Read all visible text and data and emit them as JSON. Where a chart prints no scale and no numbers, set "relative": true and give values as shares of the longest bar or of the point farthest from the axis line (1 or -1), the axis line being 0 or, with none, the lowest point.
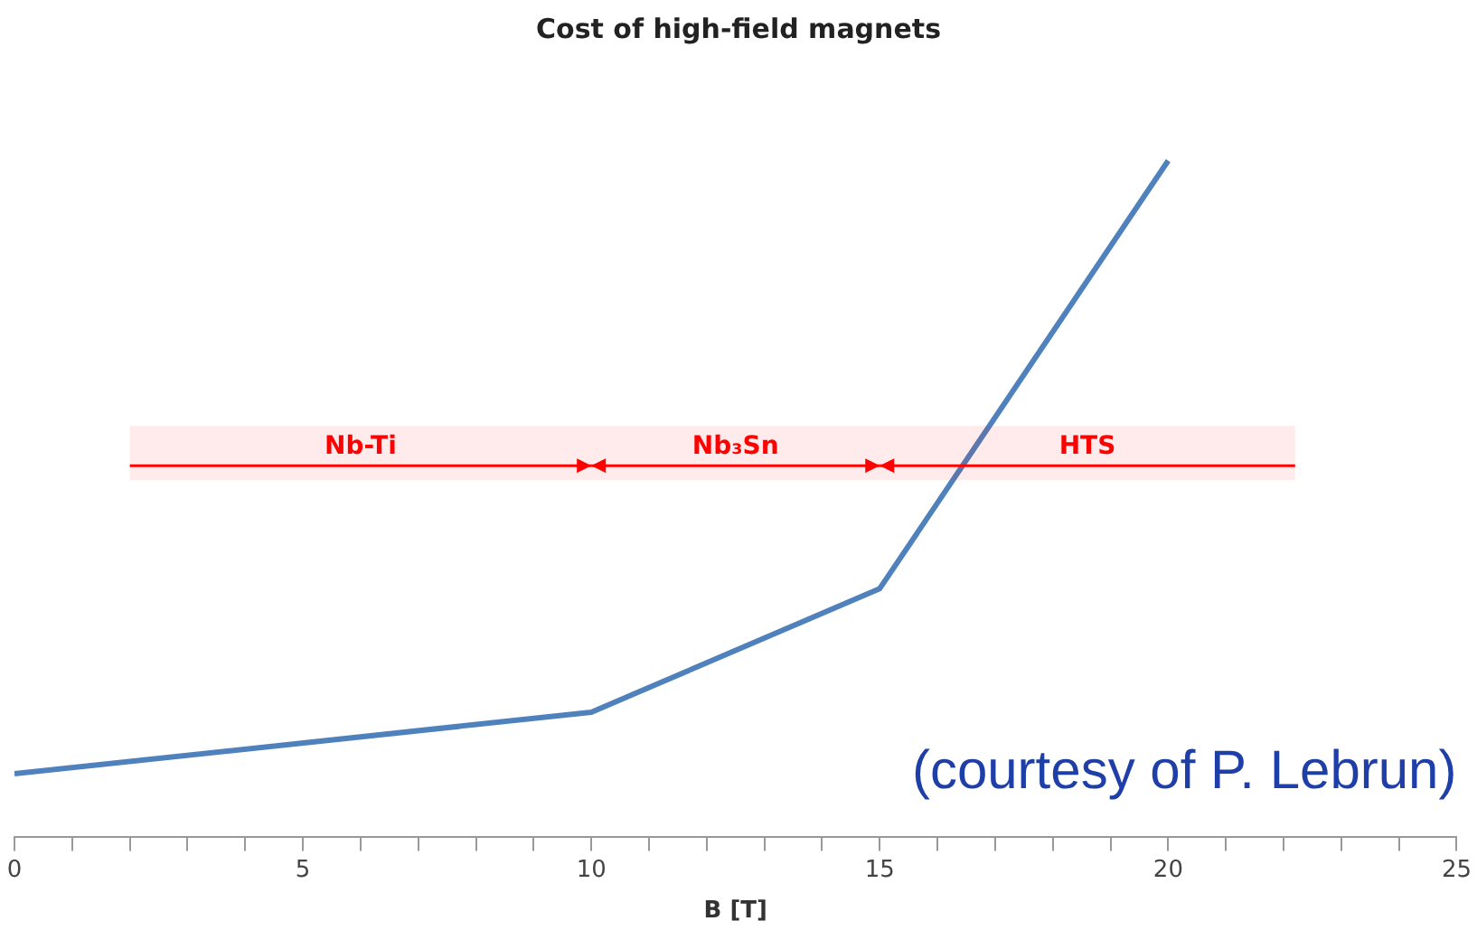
{
  "chart_data": {
    "type": "line",
    "title": "Cost of high-field magnets",
    "xlabel": "B [T]",
    "relative": true,
    "x": [
      0,
      10,
      15,
      20
    ],
    "series": [
      {
        "color": "#4f81bd",
        "values": [
          0.093,
          0.184,
          0.367,
          1
        ]
      }
    ],
    "xlim": [
      0,
      25
    ],
    "xticks": [
      0,
      {
        "value": 1,
        "label": null
      },
      {
        "value": 2,
        "label": null
      },
      {
        "value": 3,
        "label": null
      },
      {
        "value": 4,
        "label": null
      },
      5,
      {
        "value": 6,
        "label": null
      },
      {
        "value": 7,
        "label": null
      },
      {
        "value": 8,
        "label": null
      },
      {
        "value": 9,
        "label": null
      },
      10,
      {
        "value": 11,
        "label": null
      },
      {
        "value": 12,
        "label": null
      },
      {
        "value": 13,
        "label": null
      },
      {
        "value": 14,
        "label": null
      },
      15,
      {
        "value": 16,
        "label": null
      },
      {
        "value": 17,
        "label": null
      },
      {
        "value": 18,
        "label": null
      },
      {
        "value": 19,
        "label": null
      },
      20,
      {
        "value": 21,
        "label": null
      },
      {
        "value": 22,
        "label": null
      },
      {
        "value": 23,
        "label": null
      },
      {
        "value": 24,
        "label": null
      },
      25
    ],
    "bands": [
      {
        "axis": "x",
        "from": 2,
        "to": 10,
        "label": "Nb-Ti",
        "color": "#ff0000"
      },
      {
        "axis": "x",
        "from": 10,
        "to": 15,
        "label": "Nb₃Sn",
        "color": "#ff0000"
      },
      {
        "axis": "x",
        "from": 15,
        "to": 22.2,
        "label": "HTS",
        "color": "#ff0000"
      }
    ],
    "annotations": [
      "(courtesy of P. Lebrun)"
    ],
    "grid": false,
    "legend": false,
    "marker": "none",
    "line_style": "solid"
  }
}
